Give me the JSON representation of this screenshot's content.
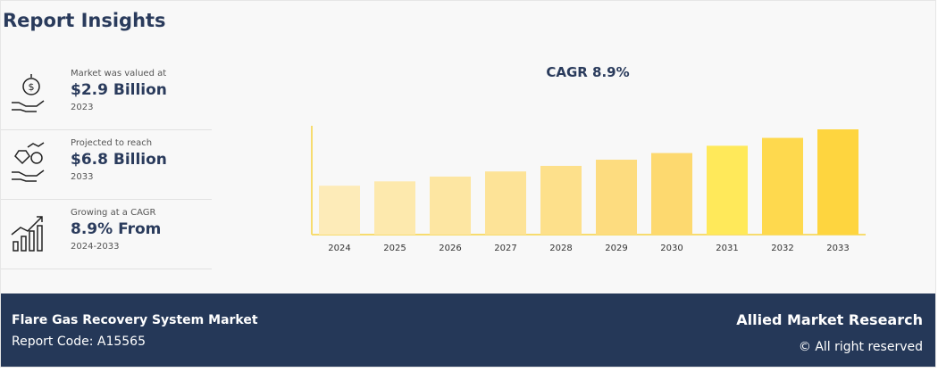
{
  "header": {
    "title": "Report Insights"
  },
  "insights": [
    {
      "label": "Market was valued at",
      "value": "$2.9 Billion",
      "period": "2023"
    },
    {
      "label": "Projected to reach",
      "value": "$6.8 Billion",
      "period": "2033"
    },
    {
      "label": "Growing at a CAGR",
      "value": "8.9% From",
      "period": "2024-2033"
    }
  ],
  "chart_data": {
    "type": "bar",
    "title": "CAGR 8.9%",
    "categories": [
      "2024",
      "2025",
      "2026",
      "2027",
      "2028",
      "2029",
      "2030",
      "2031",
      "2032",
      "2033"
    ],
    "values": [
      3.16,
      3.44,
      3.75,
      4.08,
      4.44,
      4.84,
      5.27,
      5.74,
      6.25,
      6.8
    ],
    "colors": [
      "#fdebb8",
      "#fde9ad",
      "#fde6a2",
      "#fde397",
      "#fde08b",
      "#fddc7f",
      "#fdd96f",
      "#ffe95a",
      "#fed94e",
      "#fed53f"
    ],
    "axis_color": "#f7dc6f"
  },
  "footer": {
    "market": "Flare Gas Recovery System Market",
    "report_code": "Report Code: A15565",
    "brand": "Allied Market Research",
    "rights": "© All right reserved"
  }
}
